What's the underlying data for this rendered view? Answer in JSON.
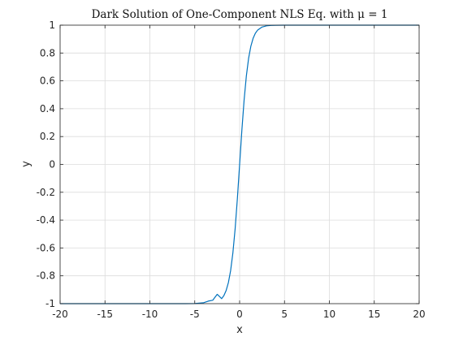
{
  "chart_data": {
    "type": "line",
    "title": "Dark Solution of One-Component NLS Eq. with μ = 1",
    "xlabel": "x",
    "ylabel": "y",
    "xlim": [
      -20,
      20
    ],
    "ylim": [
      -1,
      1
    ],
    "xticks": [
      "-20",
      "-15",
      "-10",
      "-5",
      "0",
      "5",
      "10",
      "15",
      "20"
    ],
    "yticks": [
      "-1",
      "-0.8",
      "-0.6",
      "-0.4",
      "-0.2",
      "0",
      "0.2",
      "0.4",
      "0.6",
      "0.8",
      "1"
    ],
    "grid": true,
    "series": [
      {
        "x": [
          -20,
          -10,
          -6,
          -5,
          -4,
          -3.5,
          -3,
          -2.5,
          -2,
          -1.75,
          -1.5,
          -1.25,
          -1,
          -0.75,
          -0.5,
          -0.25,
          0,
          0.25,
          0.5,
          0.75,
          1,
          1.25,
          1.5,
          1.75,
          2,
          2.5,
          3,
          3.5,
          4,
          5,
          6,
          10,
          20
        ],
        "y": [
          -1,
          -1,
          -0.9999,
          -0.9991,
          -0.9933,
          -0.9818,
          -0.9757,
          -0.9329,
          -0.964,
          -0.9418,
          -0.9051,
          -0.8483,
          -0.7616,
          -0.6351,
          -0.4621,
          -0.2449,
          0,
          0.2449,
          0.4621,
          0.6351,
          0.7616,
          0.8483,
          0.9051,
          0.9418,
          0.964,
          0.9866,
          0.9951,
          0.9982,
          0.9993,
          0.9999,
          1,
          1,
          1
        ],
        "color": "#0072bd"
      }
    ]
  }
}
